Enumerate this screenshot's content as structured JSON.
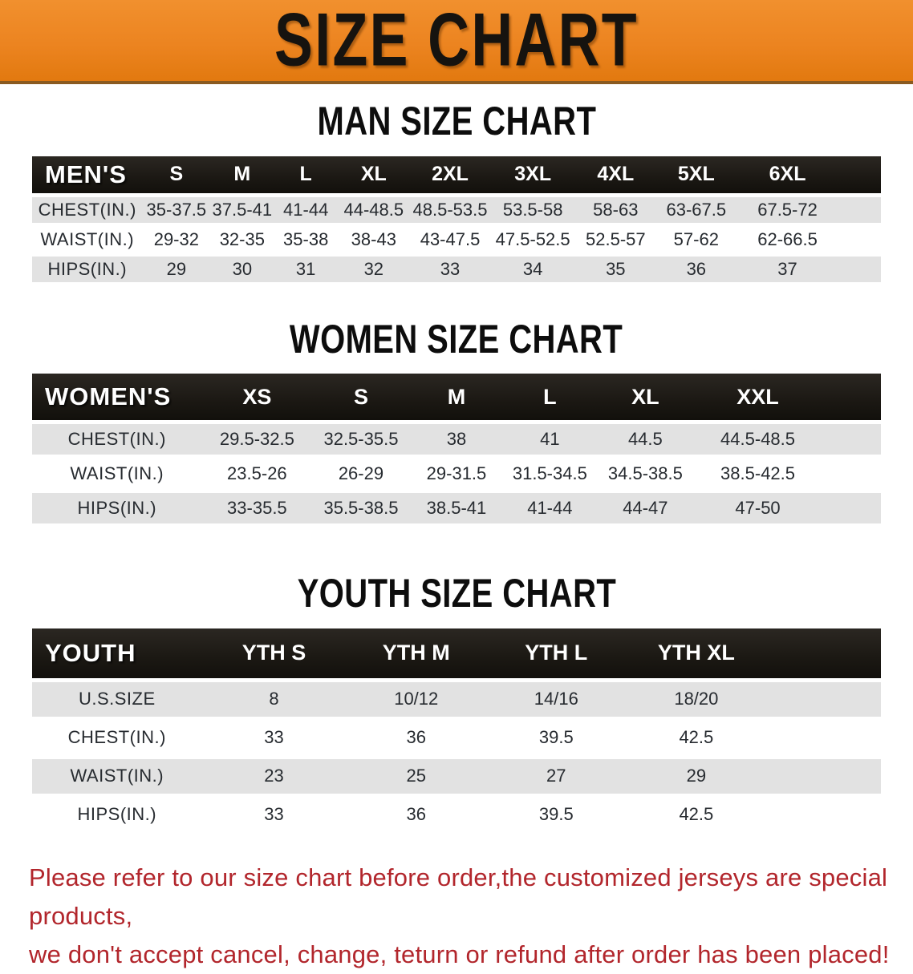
{
  "banner": {
    "title": "SIZE CHART"
  },
  "colors": {
    "banner_orange": "#EC8420",
    "header_black": "#1B1813",
    "row_gray": "#E2E2E2",
    "footer_red": "#B2262C"
  },
  "sections": [
    {
      "heading": "MAN SIZE CHART",
      "table": {
        "columns": [
          "MEN'S",
          "S",
          "M",
          "L",
          "XL",
          "2XL",
          "3XL",
          "4XL",
          "5XL",
          "6XL"
        ],
        "rows": [
          {
            "label": "CHEST(IN.)",
            "values": [
              "35-37.5",
              "37.5-41",
              "41-44",
              "44-48.5",
              "48.5-53.5",
              "53.5-58",
              "58-63",
              "63-67.5",
              "67.5-72"
            ]
          },
          {
            "label": "WAIST(IN.)",
            "values": [
              "29-32",
              "32-35",
              "35-38",
              "38-43",
              "43-47.5",
              "47.5-52.5",
              "52.5-57",
              "57-62",
              "62-66.5"
            ]
          },
          {
            "label": "HIPS(IN.)",
            "values": [
              "29",
              "30",
              "31",
              "32",
              "33",
              "34",
              "35",
              "36",
              "37"
            ]
          }
        ]
      }
    },
    {
      "heading": "WOMEN SIZE CHART",
      "table": {
        "columns": [
          "WOMEN'S",
          "XS",
          "S",
          "M",
          "L",
          "XL",
          "XXL"
        ],
        "rows": [
          {
            "label": "CHEST(IN.)",
            "values": [
              "29.5-32.5",
              "32.5-35.5",
              "38",
              "41",
              "44.5",
              "44.5-48.5"
            ]
          },
          {
            "label": "WAIST(IN.)",
            "values": [
              "23.5-26",
              "26-29",
              "29-31.5",
              "31.5-34.5",
              "34.5-38.5",
              "38.5-42.5"
            ]
          },
          {
            "label": "HIPS(IN.)",
            "values": [
              "33-35.5",
              "35.5-38.5",
              "38.5-41",
              "41-44",
              "44-47",
              "47-50"
            ]
          }
        ]
      }
    },
    {
      "heading": "YOUTH SIZE CHART",
      "table": {
        "columns": [
          "YOUTH",
          "YTH S",
          "YTH M",
          "YTH L",
          "YTH XL"
        ],
        "rows": [
          {
            "label": "U.S.SIZE",
            "values": [
              "8",
              "10/12",
              "14/16",
              "18/20"
            ]
          },
          {
            "label": "CHEST(IN.)",
            "values": [
              "33",
              "36",
              "39.5",
              "42.5"
            ]
          },
          {
            "label": "WAIST(IN.)",
            "values": [
              "23",
              "25",
              "27",
              "29"
            ]
          },
          {
            "label": "HIPS(IN.)",
            "values": [
              "33",
              "36",
              "39.5",
              "42.5"
            ]
          }
        ]
      }
    }
  ],
  "footer": {
    "line1": "Please refer to our size chart before order,the customized jerseys are special products,",
    "line2": "we don't accept cancel, change, teturn or refund after order has been placed!"
  }
}
